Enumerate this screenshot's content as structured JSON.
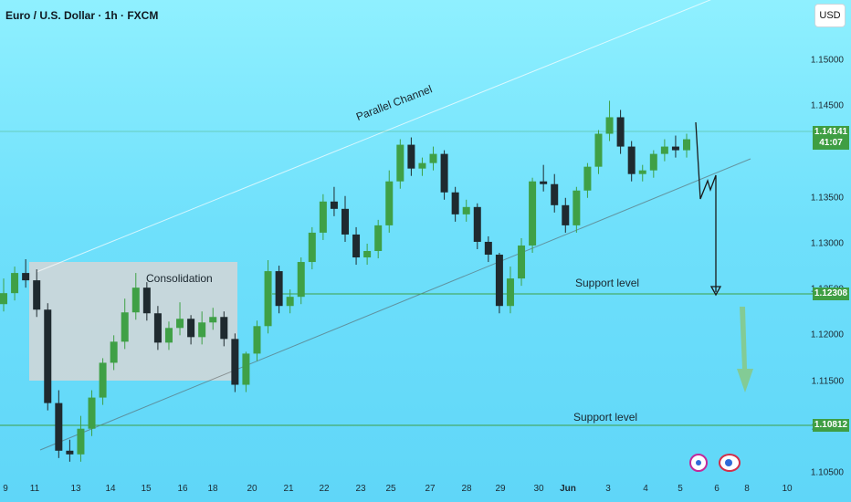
{
  "header": {
    "title": "Euro / U.S. Dollar · 1h · FXCM",
    "currency_button": "USD"
  },
  "chart_data": {
    "type": "candlestick",
    "title": "Euro / U.S. Dollar · 1h · FXCM",
    "price_axis": {
      "labels": [
        "1.15000",
        "1.14500",
        "1.13500",
        "1.13000",
        "1.12500",
        "1.12000",
        "1.11500",
        "1.11000",
        "1.10500"
      ],
      "values": [
        1.15,
        1.145,
        1.135,
        1.13,
        1.125,
        1.12,
        1.115,
        1.11,
        1.105
      ],
      "range": [
        1.1018,
        1.1566
      ]
    },
    "time_axis": {
      "labels": [
        "9",
        "11",
        "13",
        "14",
        "15",
        "16",
        "18",
        "20",
        "21",
        "22",
        "23",
        "25",
        "27",
        "28",
        "29",
        "30",
        "Jun",
        "3",
        "4",
        "5",
        "6",
        "8",
        "10"
      ]
    },
    "series": [
      {
        "values": [
          [
            1.1234,
            1.1262,
            1.1246
          ],
          [
            1.1246,
            1.1275,
            1.1268
          ],
          [
            1.1268,
            1.1283,
            1.126
          ],
          [
            1.126,
            1.1272,
            1.1228
          ],
          [
            1.1228,
            1.1235,
            1.1126
          ],
          [
            1.1126,
            1.114,
            1.1074
          ],
          [
            1.1074,
            1.1086,
            1.107
          ],
          [
            1.107,
            1.1112,
            1.1098
          ],
          [
            1.1098,
            1.114,
            1.1132
          ],
          [
            1.1132,
            1.1175,
            1.117
          ],
          [
            1.117,
            1.12,
            1.1193
          ],
          [
            1.1193,
            1.124,
            1.1225
          ],
          [
            1.1225,
            1.1268,
            1.1252
          ],
          [
            1.1252,
            1.1258,
            1.1224
          ],
          [
            1.1224,
            1.1232,
            1.1192
          ],
          [
            1.1192,
            1.1215,
            1.1208
          ],
          [
            1.1208,
            1.1236,
            1.1218
          ],
          [
            1.1218,
            1.1222,
            1.1198
          ],
          [
            1.1198,
            1.1226,
            1.1214
          ],
          [
            1.1214,
            1.123,
            1.122
          ],
          [
            1.122,
            1.1226,
            1.1196
          ],
          [
            1.1196,
            1.1202,
            1.1146
          ],
          [
            1.1146,
            1.1182,
            1.118
          ],
          [
            1.118,
            1.1216,
            1.121
          ],
          [
            1.121,
            1.1282,
            1.127
          ],
          [
            1.127,
            1.1276,
            1.1232
          ],
          [
            1.1232,
            1.125,
            1.1242
          ],
          [
            1.1242,
            1.1285,
            1.128
          ],
          [
            1.128,
            1.1318,
            1.1312
          ],
          [
            1.1312,
            1.1354,
            1.1346
          ],
          [
            1.1346,
            1.1362,
            1.1338
          ],
          [
            1.1338,
            1.1352,
            1.131
          ],
          [
            1.131,
            1.1318,
            1.1285
          ],
          [
            1.1285,
            1.13,
            1.1292
          ],
          [
            1.1292,
            1.1326,
            1.132
          ],
          [
            1.132,
            1.138,
            1.1368
          ],
          [
            1.1368,
            1.1414,
            1.1408
          ],
          [
            1.1408,
            1.1416,
            1.1382
          ],
          [
            1.1382,
            1.1394,
            1.1388
          ],
          [
            1.1388,
            1.1406,
            1.1398
          ],
          [
            1.1398,
            1.1402,
            1.1356
          ],
          [
            1.1356,
            1.1362,
            1.1332
          ],
          [
            1.1332,
            1.1348,
            1.134
          ],
          [
            1.134,
            1.1344,
            1.1302
          ],
          [
            1.1302,
            1.1308,
            1.1288
          ],
          [
            1.1288,
            1.129,
            1.1232
          ],
          [
            1.1232,
            1.1275,
            1.1262
          ],
          [
            1.1262,
            1.1306,
            1.1298
          ],
          [
            1.1298,
            1.1372,
            1.1368
          ],
          [
            1.1368,
            1.1386,
            1.1365
          ],
          [
            1.1365,
            1.1376,
            1.1342
          ],
          [
            1.1342,
            1.135,
            1.132
          ],
          [
            1.132,
            1.1362,
            1.1358
          ],
          [
            1.1358,
            1.1388,
            1.1384
          ],
          [
            1.1384,
            1.1424,
            1.142
          ],
          [
            1.142,
            1.1456,
            1.1438
          ],
          [
            1.1438,
            1.1446,
            1.1406
          ],
          [
            1.1406,
            1.1412,
            1.1376
          ],
          [
            1.1376,
            1.1386,
            1.138
          ],
          [
            1.138,
            1.1402,
            1.1398
          ],
          [
            1.1398,
            1.1414,
            1.1406
          ],
          [
            1.1406,
            1.1418,
            1.1402
          ],
          [
            1.1402,
            1.142,
            1.1414
          ]
        ]
      }
    ],
    "current_price": {
      "label": "1.14141",
      "timer": "41:07",
      "value": 1.14141
    },
    "support_levels": [
      {
        "label": "Support level",
        "price_label": "1.12308",
        "value": 1.12308
      },
      {
        "label": "Support level",
        "price_label": "1.10812",
        "value": 1.10812
      }
    ],
    "annotations": {
      "channel_label": "Parallel Channel",
      "consolidation_label": "Consolidation"
    },
    "colors": {
      "background": "#6fe0fb",
      "bull": "#3fa046",
      "bear": "#1f2a2f",
      "level": "#3fa046",
      "forecast_arrow": "#86c98a"
    }
  }
}
